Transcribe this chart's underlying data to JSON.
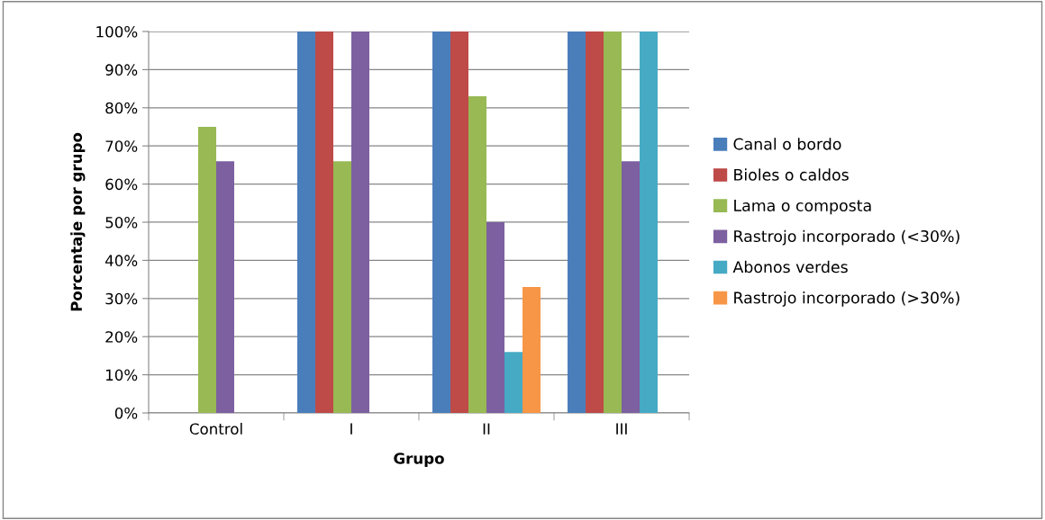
{
  "chart_data": {
    "type": "bar",
    "xlabel": "Grupo",
    "ylabel": "Porcentaje por grupo",
    "categories": [
      "Control",
      "I",
      "II",
      "III"
    ],
    "series": [
      {
        "name": "Canal o bordo",
        "color": "#4a7ebb",
        "values": [
          0,
          100,
          100,
          100
        ]
      },
      {
        "name": "Bioles o caldos",
        "color": "#be4b48",
        "values": [
          0,
          100,
          100,
          100
        ]
      },
      {
        "name": "Lama o composta",
        "color": "#98b954",
        "values": [
          75,
          66,
          83,
          100
        ]
      },
      {
        "name": "Rastrojo incorporado (<30%)",
        "color": "#7d60a0",
        "values": [
          66,
          100,
          50,
          66
        ]
      },
      {
        "name": "Abonos verdes",
        "color": "#46aac5",
        "values": [
          0,
          0,
          16,
          100
        ]
      },
      {
        "name": "Rastrojo incorporado (>30%)",
        "color": "#f79646",
        "values": [
          0,
          0,
          33,
          0
        ]
      }
    ],
    "ylim": [
      0,
      100
    ],
    "yticks": [
      {
        "value": 0,
        "label": "0%"
      },
      {
        "value": 10,
        "label": "10%"
      },
      {
        "value": 20,
        "label": "20%"
      },
      {
        "value": 30,
        "label": "30%"
      },
      {
        "value": 40,
        "label": "40%"
      },
      {
        "value": 50,
        "label": "50%"
      },
      {
        "value": 60,
        "label": "60%"
      },
      {
        "value": 70,
        "label": "70%"
      },
      {
        "value": 80,
        "label": "80%"
      },
      {
        "value": 90,
        "label": "90%"
      },
      {
        "value": 100,
        "label": "100%"
      }
    ],
    "grid": "y",
    "legend": "right"
  }
}
